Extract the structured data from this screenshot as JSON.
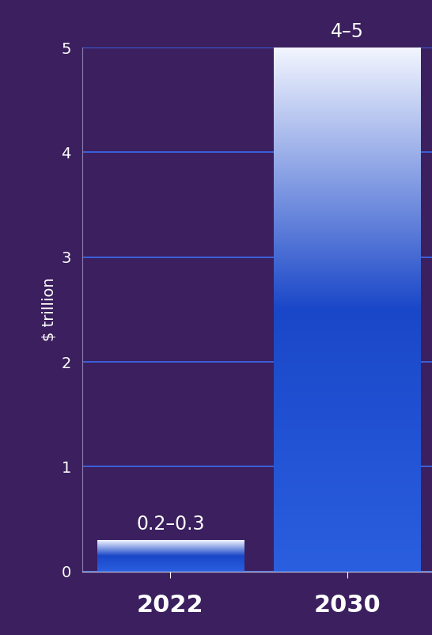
{
  "chart_data": {
    "type": "bar",
    "categories": [
      "2022",
      "2030"
    ],
    "values": [
      0.3,
      5
    ],
    "value_labels": [
      "0.2–0.3",
      "4–5"
    ],
    "data_labels": true,
    "color": "#2a5fe0",
    "y_label": "$ trillion",
    "ylim": [
      0,
      5
    ],
    "yticks": [
      0,
      1,
      2,
      3,
      4,
      5
    ],
    "grid": true
  }
}
